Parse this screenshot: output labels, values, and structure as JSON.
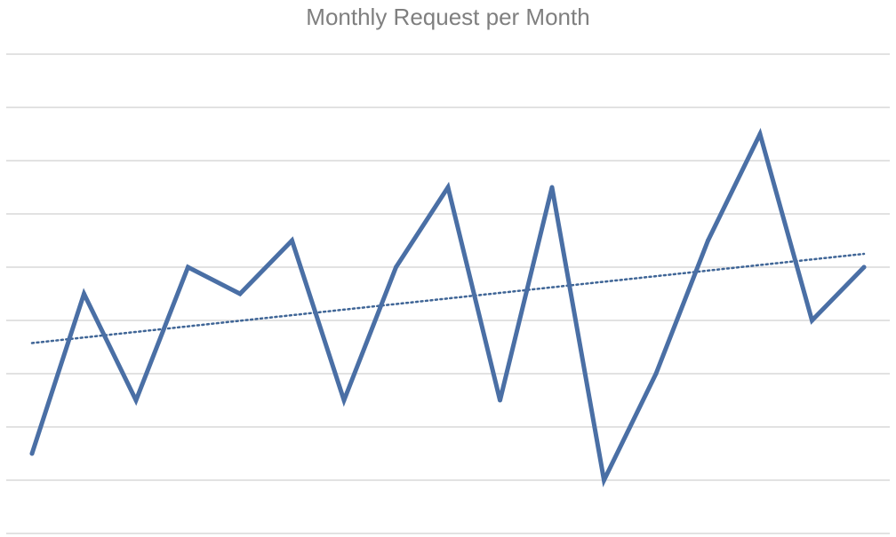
{
  "chart_data": {
    "type": "line",
    "title": "Monthly Request per Month",
    "xlabel": "",
    "ylabel": "",
    "x": [
      1,
      2,
      3,
      4,
      5,
      6,
      7,
      8,
      9,
      10,
      11,
      12,
      13,
      14,
      15,
      16,
      17
    ],
    "series": [
      {
        "values": [
          1,
          7,
          3,
          8,
          7,
          9,
          3,
          8,
          11,
          3,
          11,
          0,
          4,
          9,
          13,
          6,
          8
        ],
        "color": "#4a6fa5"
      }
    ],
    "trendline": {
      "type": "linear",
      "start": 5.15,
      "end": 8.5,
      "style": "dotted",
      "color": "#3f6596"
    },
    "ylim": [
      -2,
      16
    ],
    "gridlines": {
      "horizontal": true,
      "vertical": false,
      "color": "#d9d9d9"
    },
    "legend": "none"
  }
}
